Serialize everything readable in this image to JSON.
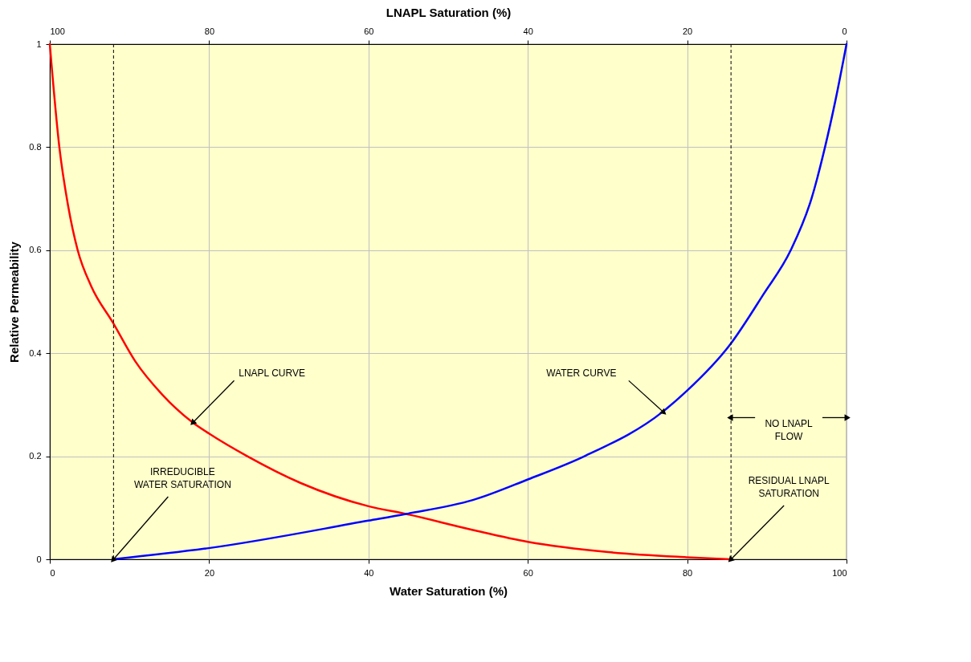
{
  "chart_data": {
    "type": "line",
    "xlabel": "Water Saturation (%)",
    "ylabel": "Relative Permeability",
    "x2label": "LNAPL Saturation (%)",
    "xlim": [
      0,
      100
    ],
    "xticks": [
      0,
      20,
      40,
      60,
      80,
      100
    ],
    "x2lim": [
      100,
      0
    ],
    "x2ticks": [
      100,
      80,
      60,
      40,
      20,
      0
    ],
    "ylim": [
      0,
      1
    ],
    "yticks": [
      0,
      0.2,
      0.4,
      0.6,
      0.8,
      1
    ],
    "grid": true,
    "marker": "none",
    "line_style": "solid",
    "series": [
      {
        "color": "#ff0000",
        "x": [
          0,
          1.2,
          2.3,
          3.5,
          5.2,
          7.9,
          10.7,
          14.1,
          17.9,
          20.1,
          24.8,
          31.5,
          40,
          44.7,
          53.1,
          60,
          70.1,
          79.9,
          85.4
        ],
        "values": [
          1,
          0.8,
          0.686,
          0.6,
          0.53,
          0.46,
          0.385,
          0.32,
          0.266,
          0.243,
          0.2,
          0.148,
          0.103,
          0.088,
          0.057,
          0.034,
          0.014,
          0.004,
          0
        ]
      },
      {
        "color": "#0000ff",
        "x": [
          7.9,
          20.1,
          40,
          44.7,
          53.1,
          60,
          67.1,
          76.9,
          79.9,
          85.4,
          89.6,
          93,
          95.6,
          97.3,
          98.6,
          100
        ],
        "values": [
          0,
          0.022,
          0.075,
          0.088,
          0.115,
          0.155,
          0.2,
          0.286,
          0.326,
          0.417,
          0.515,
          0.6,
          0.7,
          0.8,
          0.89,
          1
        ]
      }
    ],
    "ref_lines": [
      {
        "axis": "x",
        "value": 8,
        "color": "#000000",
        "line_style": "dashed"
      },
      {
        "axis": "x",
        "value": 85.5,
        "color": "#000000",
        "line_style": "dashed"
      }
    ],
    "annotations": [
      {
        "text": "LNAPL CURVE",
        "x": 18,
        "y": 0.266
      },
      {
        "text": "WATER CURVE",
        "x": 77,
        "y": 0.286
      },
      {
        "text": "IRREDUCIBLE\nWATER SATURATION",
        "x": 8,
        "y": 0
      },
      {
        "text": "RESIDUAL LNAPL\nSATURATION",
        "x": 85.5,
        "y": 0
      },
      "NO LNAPL\nFLOW"
    ]
  }
}
